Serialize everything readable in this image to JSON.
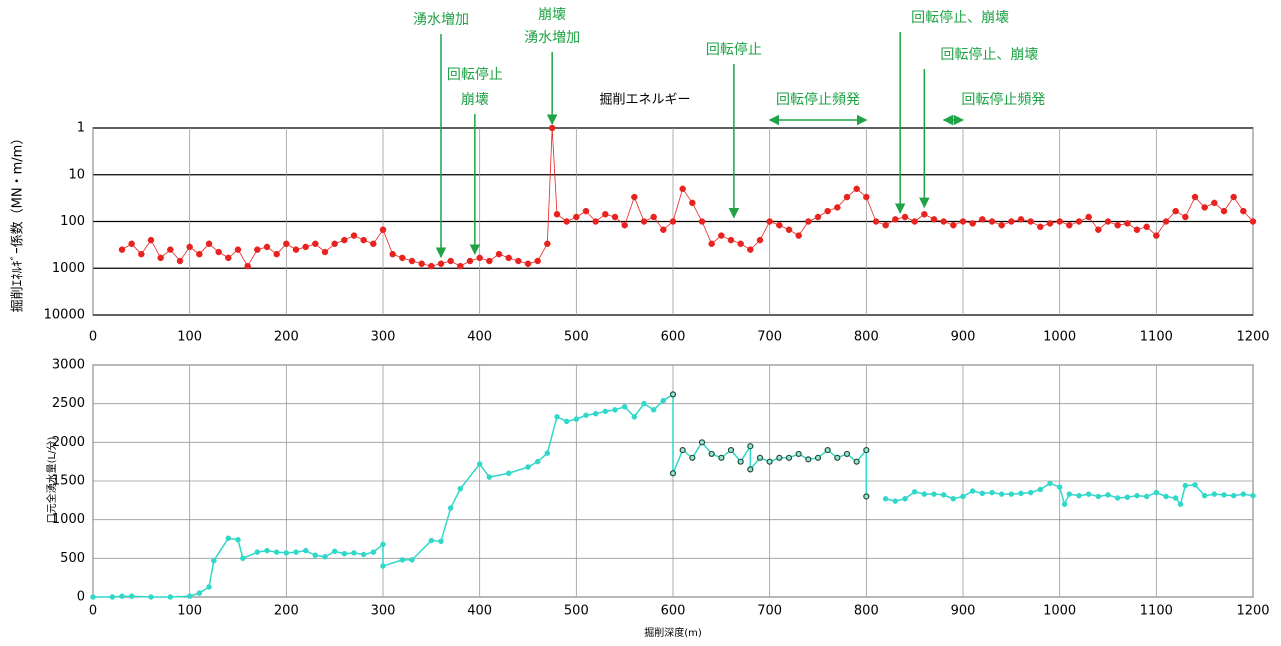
{
  "chart_data": [
    {
      "type": "scatter",
      "title": "掘削エネルギー",
      "ylabel": "掘削ｴﾈﾙｷﾞｰ係数（MN・m/m）",
      "log_y": true,
      "inverted_y": true,
      "grid": true,
      "color": "#e8231f",
      "xlim": [
        0,
        1200
      ],
      "xticks": [
        0,
        100,
        200,
        300,
        400,
        500,
        600,
        700,
        800,
        900,
        1000,
        1100,
        1200
      ],
      "ylim": [
        1,
        10000
      ],
      "yticks": [
        1,
        10,
        100,
        1000,
        10000
      ],
      "series": [
        {
          "color": "#e8231f",
          "x": [
            30,
            40,
            50,
            60,
            70,
            80,
            90,
            100,
            110,
            120,
            130,
            140,
            150,
            160,
            170,
            180,
            190,
            200,
            210,
            220,
            230,
            240,
            250,
            260,
            270,
            280,
            290,
            300,
            310,
            320,
            330,
            340,
            350,
            360,
            370,
            380,
            390,
            400,
            410,
            420,
            430,
            440,
            450,
            460,
            470,
            475,
            480,
            490,
            500,
            510,
            520,
            530,
            540,
            550,
            560,
            570,
            580,
            590,
            600,
            610,
            620,
            630,
            640,
            650,
            660,
            670,
            680,
            690,
            700,
            710,
            720,
            730,
            740,
            750,
            760,
            770,
            780,
            790,
            800,
            810,
            820,
            830,
            840,
            850,
            860,
            870,
            880,
            890,
            900,
            910,
            920,
            930,
            940,
            950,
            960,
            970,
            980,
            990,
            1000,
            1010,
            1020,
            1030,
            1040,
            1050,
            1060,
            1070,
            1080,
            1090,
            1100,
            1110,
            1120,
            1130,
            1140,
            1150,
            1160,
            1170,
            1180,
            1190,
            1200
          ],
          "values": [
            400,
            300,
            500,
            250,
            600,
            400,
            700,
            350,
            500,
            300,
            450,
            600,
            400,
            900,
            400,
            350,
            500,
            300,
            400,
            350,
            300,
            450,
            300,
            250,
            200,
            250,
            300,
            150,
            500,
            600,
            700,
            800,
            900,
            800,
            700,
            900,
            700,
            600,
            700,
            500,
            600,
            700,
            800,
            700,
            300,
            1,
            70,
            100,
            80,
            60,
            100,
            70,
            80,
            120,
            30,
            100,
            80,
            150,
            100,
            20,
            40,
            100,
            300,
            200,
            250,
            300,
            400,
            250,
            100,
            120,
            150,
            200,
            100,
            80,
            60,
            50,
            30,
            20,
            30,
            100,
            120,
            90,
            80,
            100,
            70,
            90,
            100,
            120,
            100,
            110,
            90,
            100,
            120,
            100,
            90,
            100,
            130,
            110,
            100,
            120,
            100,
            80,
            150,
            100,
            120,
            110,
            150,
            130,
            200,
            100,
            60,
            80,
            30,
            50,
            40,
            60,
            30,
            60,
            100
          ]
        }
      ],
      "annotations": [
        {
          "text": [
            "湧水増加"
          ],
          "x": 360,
          "y": 700
        },
        {
          "text": [
            "回転停止",
            "崩壊"
          ],
          "x": 395,
          "y": 600
        },
        {
          "text": [
            "崩壊",
            "湧水増加"
          ],
          "x": 475,
          "y": 1
        },
        {
          "text": [
            "回転停止"
          ],
          "x": 663,
          "y": 100
        },
        {
          "text": [
            "回転停止、崩壊"
          ],
          "x": 835,
          "y": 80
        },
        {
          "text": [
            "回転停止、崩壊"
          ],
          "x": 860,
          "y": 60
        },
        {
          "text": [
            "回転停止頻発"
          ],
          "x": [
            700,
            800
          ]
        },
        {
          "text": [
            "回転停止頻発"
          ],
          "x": [
            880,
            900
          ]
        }
      ]
    },
    {
      "type": "line",
      "xlabel": "掘削深度(m)",
      "ylabel": "口元全湧水量(L/分)",
      "grid": true,
      "xlim": [
        0,
        1200
      ],
      "xticks": [
        0,
        100,
        200,
        300,
        400,
        500,
        600,
        700,
        800,
        900,
        1000,
        1100,
        1200
      ],
      "ylim": [
        0,
        3000
      ],
      "yticks": [
        0,
        500,
        1000,
        1500,
        2000,
        2500,
        3000
      ],
      "series": [
        {
          "color": "#2fd8c8",
          "marker": "#2fd8c8",
          "x": [
            0,
            20,
            30,
            40,
            60,
            80,
            100,
            110,
            120,
            125,
            140,
            150,
            155,
            170,
            180,
            190,
            200,
            210,
            220,
            230,
            240,
            250,
            260,
            270,
            280,
            290,
            300,
            300,
            320,
            330,
            350,
            360,
            370,
            380,
            400,
            410,
            430,
            450,
            460,
            470,
            480,
            490,
            500,
            510,
            520,
            530,
            540,
            550,
            560,
            570,
            580,
            590,
            600
          ],
          "values": [
            0,
            0,
            10,
            10,
            0,
            0,
            10,
            50,
            130,
            470,
            760,
            740,
            500,
            580,
            600,
            580,
            570,
            580,
            600,
            540,
            520,
            590,
            560,
            570,
            550,
            580,
            680,
            400,
            480,
            480,
            730,
            720,
            1150,
            1400,
            1720,
            1550,
            1600,
            1680,
            1750,
            1860,
            2330,
            2270,
            2300,
            2350,
            2370,
            2400,
            2420,
            2460,
            2330,
            2500,
            2420,
            2540,
            2620
          ]
        },
        {
          "color": "#2fd8c8",
          "marker": "#1f4d3a",
          "x": [
            600,
            600,
            610,
            620,
            630,
            640,
            650,
            660,
            670,
            680,
            680,
            690,
            700,
            710,
            720,
            730,
            740,
            750,
            760,
            770,
            780,
            790,
            800,
            800
          ],
          "values": [
            2620,
            1600,
            1900,
            1800,
            2000,
            1850,
            1800,
            1900,
            1750,
            1950,
            1650,
            1800,
            1750,
            1800,
            1800,
            1850,
            1780,
            1800,
            1900,
            1800,
            1850,
            1750,
            1900,
            1300
          ]
        },
        {
          "color": "#2fd8c8",
          "marker": "#2fd8c8",
          "x": [
            820,
            830,
            840,
            850,
            860,
            870,
            880,
            890,
            900,
            910,
            920,
            930,
            940,
            950,
            960,
            970,
            980,
            990,
            1000,
            1005,
            1010,
            1020,
            1030,
            1040,
            1050,
            1060,
            1070,
            1080,
            1090,
            1100,
            1110,
            1120,
            1125,
            1130,
            1140,
            1150,
            1160,
            1170,
            1180,
            1190,
            1200
          ],
          "values": [
            1270,
            1240,
            1270,
            1360,
            1330,
            1330,
            1320,
            1270,
            1300,
            1370,
            1340,
            1350,
            1330,
            1330,
            1340,
            1350,
            1390,
            1470,
            1420,
            1200,
            1330,
            1310,
            1330,
            1300,
            1320,
            1280,
            1290,
            1310,
            1300,
            1350,
            1300,
            1280,
            1200,
            1440,
            1450,
            1310,
            1330,
            1320,
            1310,
            1330,
            1310
          ]
        }
      ]
    }
  ]
}
